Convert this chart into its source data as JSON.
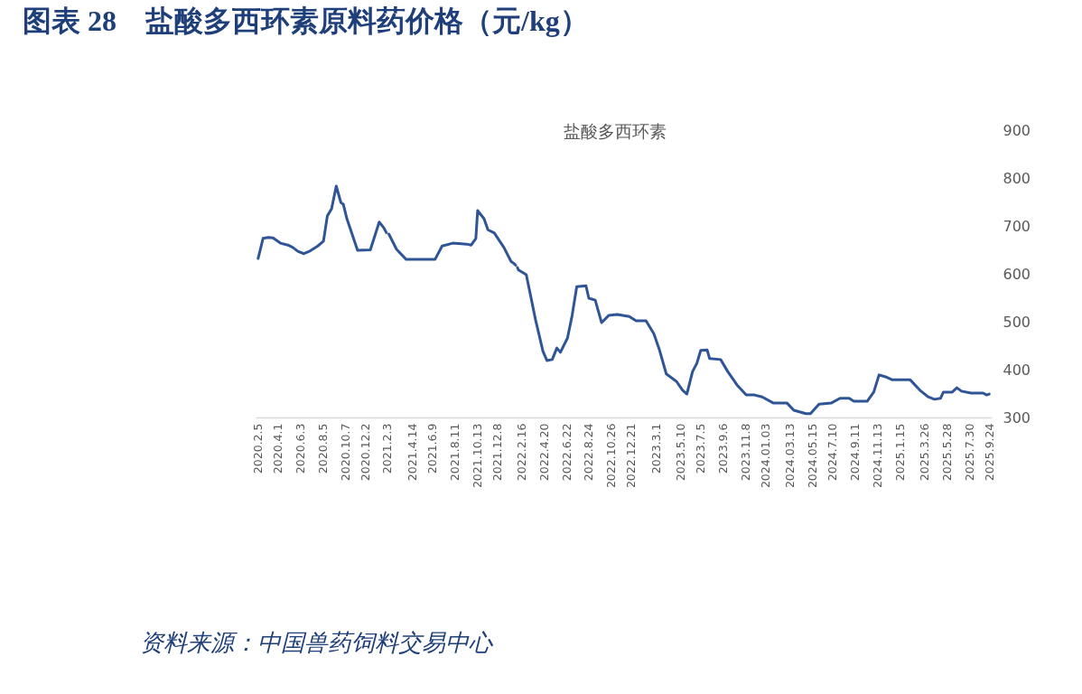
{
  "chart_data": {
    "type": "line",
    "title": "图表 28　盐酸多西环素原料药价格（元/kg）",
    "subtitle": "盐酸多西环素",
    "annotations": [
      "资料来源：中国兽药饲料交易中心"
    ],
    "x": [
      "2020-02-05",
      "2020-02-19",
      "2020-03-05",
      "2020-03-18",
      "2020-04-08",
      "2020-04-29",
      "2020-05-13",
      "2020-05-27",
      "2020-06-13",
      "2020-07-01",
      "2020-07-22",
      "2020-08-07",
      "2020-08-18",
      "2020-08-30",
      "2020-09-12",
      "2020-09-25",
      "2020-10-02",
      "2020-10-12",
      "2020-11-11",
      "2020-12-17",
      "2021-01-11",
      "2021-01-24",
      "2021-01-31",
      "2021-02-03",
      "2021-02-07",
      "2021-03-01",
      "2021-03-28",
      "2021-06-17",
      "2021-07-07",
      "2021-08-06",
      "2021-09-14",
      "2021-09-27",
      "2021-10-10",
      "2021-10-15",
      "2021-11-02",
      "2021-11-13",
      "2021-12-01",
      "2021-12-28",
      "2022-01-17",
      "2022-01-26",
      "2022-01-30",
      "2022-02-01",
      "2022-02-04",
      "2022-02-07",
      "2022-03-01",
      "2022-03-27",
      "2022-04-17",
      "2022-04-28",
      "2022-05-13",
      "2022-05-26",
      "2022-06-05",
      "2022-06-25",
      "2022-07-08",
      "2022-07-21",
      "2022-08-16",
      "2022-08-24",
      "2022-09-11",
      "2022-09-29",
      "2022-10-19",
      "2022-11-12",
      "2022-12-16",
      "2023-01-04",
      "2023-02-01",
      "2023-02-23",
      "2023-03-10",
      "2023-03-30",
      "2023-04-28",
      "2023-05-15",
      "2023-05-27",
      "2023-06-12",
      "2023-06-24",
      "2023-07-05",
      "2023-07-23",
      "2023-07-30",
      "2023-08-30",
      "2023-09-19",
      "2023-10-15",
      "2023-11-10",
      "2023-12-03",
      "2023-12-25",
      "2024-01-26",
      "2024-03-04",
      "2024-03-23",
      "2024-04-26",
      "2024-05-09",
      "2024-06-02",
      "2024-07-06",
      "2024-07-31",
      "2024-08-26",
      "2024-09-08",
      "2024-10-16",
      "2024-11-03",
      "2024-11-18",
      "2024-12-06",
      "2024-12-24",
      "2025-02-13",
      "2025-03-13",
      "2025-04-05",
      "2025-04-23",
      "2025-05-10",
      "2025-05-18",
      "2025-06-12",
      "2025-06-25",
      "2025-07-08",
      "2025-08-04",
      "2025-09-07",
      "2025-09-17",
      "2025-09-24"
    ],
    "series": [
      {
        "color": "#2f5597",
        "values": [
          632,
          674,
          676,
          675,
          664,
          660,
          655,
          647,
          642,
          648,
          658,
          668,
          721,
          736,
          783,
          749,
          745,
          715,
          649,
          650,
          708,
          696,
          686,
          null,
          683,
          651,
          630,
          630,
          658,
          664,
          662,
          660,
          674,
          732,
          715,
          692,
          685,
          655,
          626,
          621,
          618,
          null,
          613,
          608,
          598,
          504,
          438,
          419,
          421,
          445,
          436,
          466,
          513,
          573,
          575,
          549,
          545,
          498,
          513,
          515,
          511,
          502,
          502,
          475,
          443,
          391,
          375,
          357,
          349,
          396,
          413,
          440,
          441,
          423,
          421,
          396,
          368,
          347,
          347,
          343,
          330,
          330,
          315,
          308,
          308,
          328,
          330,
          340,
          340,
          334,
          334,
          353,
          389,
          385,
          379,
          379,
          357,
          343,
          338,
          340,
          353,
          353,
          362,
          355,
          351,
          351,
          347,
          349
        ]
      }
    ],
    "xlim": [
      "2020-01-29",
      "2025-10-01"
    ],
    "xticks": [
      {
        "value": "2020-02-05",
        "label": "2020.2.5"
      },
      {
        "value": "2020-04-01",
        "label": "2020.4.1"
      },
      {
        "value": "2020-06-03",
        "label": "2020.6.3"
      },
      {
        "value": "2020-08-05",
        "label": "2020.8.5"
      },
      {
        "value": "2020-10-07",
        "label": "2020.10.7"
      },
      {
        "value": "2020-12-02",
        "label": "2020.12.2"
      },
      {
        "value": "2021-02-03",
        "label": "2021.2.3"
      },
      {
        "value": "2021-04-14",
        "label": "2021.4.14"
      },
      {
        "value": "2021-06-09",
        "label": "2021.6.9"
      },
      {
        "value": "2021-08-11",
        "label": "2021.8.11"
      },
      {
        "value": "2021-10-13",
        "label": "2021.10.13"
      },
      {
        "value": "2021-12-08",
        "label": "2021.12.8"
      },
      {
        "value": "2022-02-16",
        "label": "2022.2.16"
      },
      {
        "value": "2022-04-20",
        "label": "2022.4.20"
      },
      {
        "value": "2022-06-22",
        "label": "2022.6.22"
      },
      {
        "value": "2022-08-24",
        "label": "2022.8.24"
      },
      {
        "value": "2022-10-26",
        "label": "2022.10.26"
      },
      {
        "value": "2022-12-21",
        "label": "2022.12.21"
      },
      {
        "value": "2023-03-01",
        "label": "2023.3.1"
      },
      {
        "value": "2023-05-10",
        "label": "2023.5.10"
      },
      {
        "value": "2023-07-05",
        "label": "2023.7.5"
      },
      {
        "value": "2023-09-06",
        "label": "2023.9.6"
      },
      {
        "value": "2023-11-08",
        "label": "2023.11.8"
      },
      {
        "value": "2024-01-03",
        "label": "2024.01.03"
      },
      {
        "value": "2024-03-13",
        "label": "2024.03.13"
      },
      {
        "value": "2024-05-15",
        "label": "2024.05.15"
      },
      {
        "value": "2024-07-10",
        "label": "2024.7.10"
      },
      {
        "value": "2024-09-11",
        "label": "2024.9.11"
      },
      {
        "value": "2024-11-13",
        "label": "2024.11.13"
      },
      {
        "value": "2025-01-15",
        "label": "2025.1.15"
      },
      {
        "value": "2025-03-26",
        "label": "2025.3.26"
      },
      {
        "value": "2025-05-28",
        "label": "2025.5.28"
      },
      {
        "value": "2025-07-30",
        "label": "2025.7.30"
      },
      {
        "value": "2025-09-24",
        "label": "2025.9.24"
      }
    ],
    "ylim": [
      300,
      900
    ],
    "yticks": [
      300,
      400,
      500,
      600,
      700,
      800,
      900
    ],
    "grid": false,
    "marker": "none",
    "line_style": "solid"
  }
}
